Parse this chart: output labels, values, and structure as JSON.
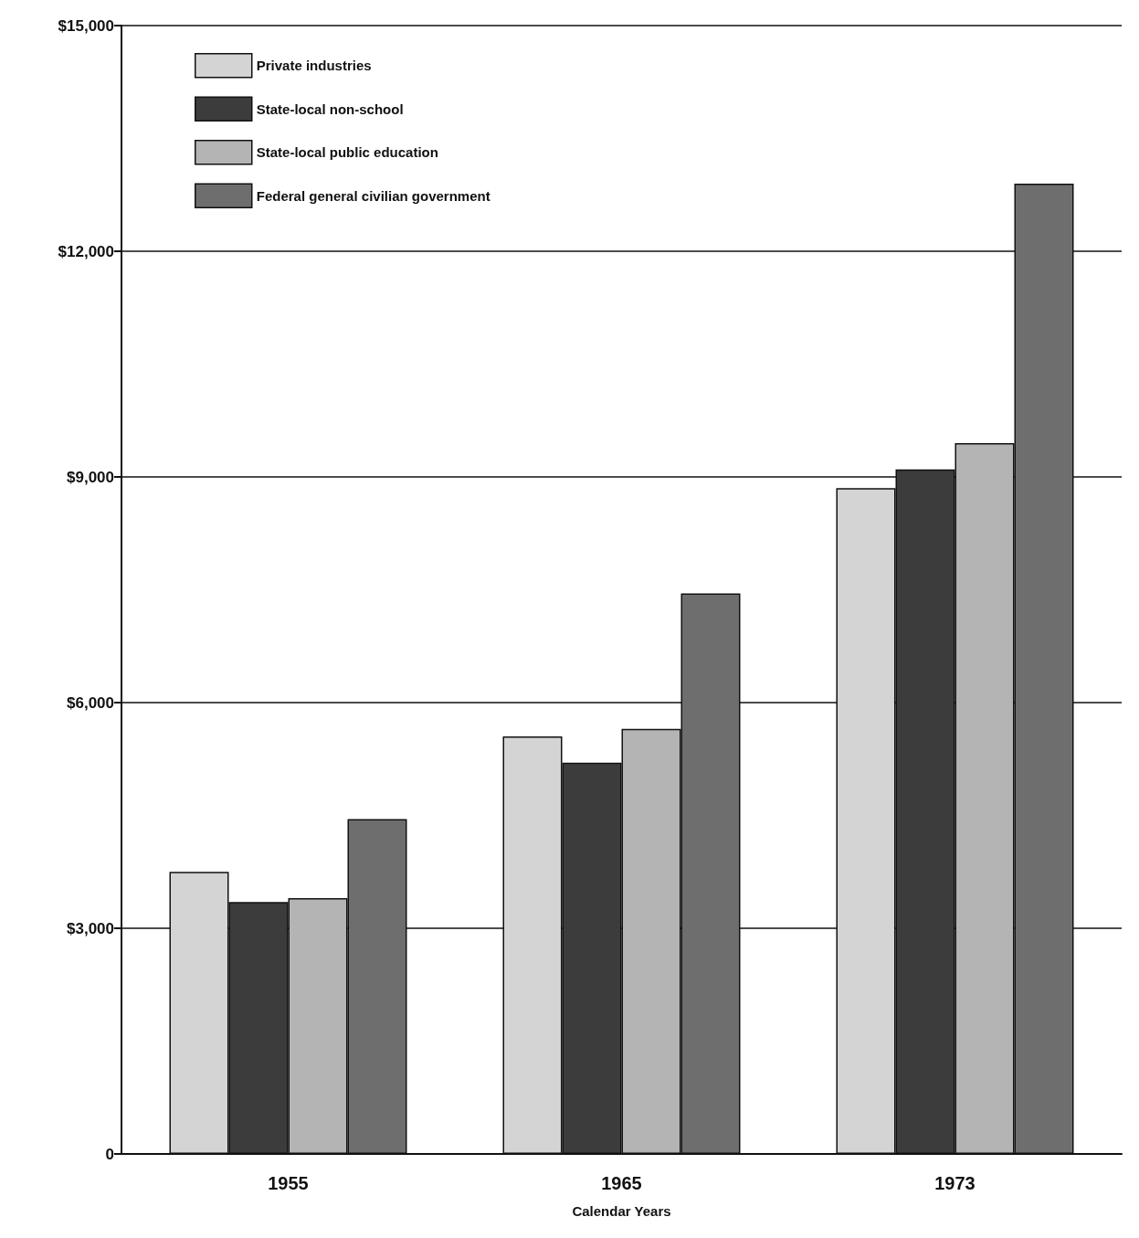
{
  "chart_data": {
    "type": "bar",
    "xlabel": "Calendar Years",
    "categories": [
      "1955",
      "1965",
      "1973"
    ],
    "series": [
      {
        "name": "Private industries",
        "color": "#d4d4d4",
        "values": [
          3750,
          5550,
          8850
        ]
      },
      {
        "name": "State-local non-school",
        "color": "#3c3c3c",
        "values": [
          3350,
          5200,
          9100
        ]
      },
      {
        "name": "State-local public education",
        "color": "#b4b4b4",
        "values": [
          3400,
          5650,
          9450
        ]
      },
      {
        "name": "Federal general civilian government",
        "color": "#6e6e6e",
        "values": [
          4450,
          7450,
          12900
        ]
      }
    ],
    "ylim": [
      0,
      15000
    ],
    "yticks": [
      {
        "value": 0,
        "label": "0"
      },
      {
        "value": 3000,
        "label": "$3,000"
      },
      {
        "value": 6000,
        "label": "$6,000"
      },
      {
        "value": 9000,
        "label": "$9,000"
      },
      {
        "value": 12000,
        "label": "$12,000"
      },
      {
        "value": 15000,
        "label": "$15,000"
      }
    ],
    "grid": "y",
    "legend": "top left"
  }
}
